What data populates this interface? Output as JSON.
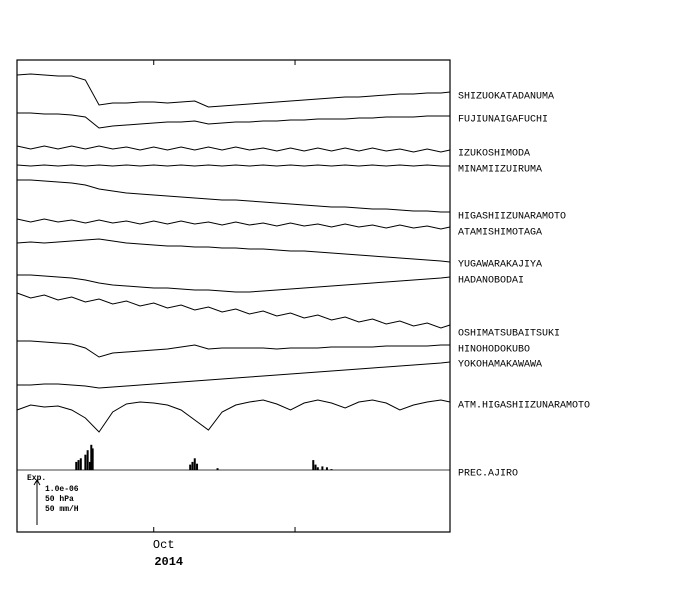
{
  "chart_data": {
    "type": "line",
    "xlim": [
      0,
      95
    ],
    "ylim": [
      0,
      472
    ],
    "xticks": [
      {
        "value": 30,
        "label": "Oct"
      },
      {
        "value": 61,
        "label": null
      }
    ],
    "x_sublabel": "2014",
    "x": [
      0,
      3,
      6,
      9,
      12,
      15,
      18,
      21,
      24,
      27,
      30,
      33,
      36,
      39,
      42,
      45,
      48,
      51,
      54,
      57,
      60,
      63,
      66,
      69,
      72,
      75,
      78,
      81,
      84,
      87,
      90,
      93,
      95
    ],
    "series": [
      {
        "name": "SHIZUOKATADANUMA",
        "color": "#000000",
        "values": [
          457,
          458,
          457,
          456,
          456,
          452,
          427,
          429,
          429,
          430,
          430,
          429,
          430,
          431,
          425,
          426,
          427,
          428,
          429,
          430,
          431,
          432,
          433,
          434,
          435,
          435,
          436,
          437,
          438,
          438,
          439,
          439,
          440
        ]
      },
      {
        "name": "FUJIUNAIGAFUCHI",
        "color": "#000000",
        "values": [
          419,
          419,
          418,
          418,
          417,
          415,
          404,
          406,
          407,
          408,
          409,
          410,
          410,
          411,
          408,
          409,
          410,
          410,
          411,
          411,
          412,
          412,
          413,
          413,
          413,
          414,
          414,
          415,
          415,
          415,
          416,
          416,
          416
        ]
      },
      {
        "name": "IZUKOSHIMODA",
        "color": "#000000",
        "values": [
          386,
          383,
          386,
          383,
          386,
          383,
          386,
          383,
          385,
          382,
          385,
          382,
          385,
          382,
          385,
          382,
          385,
          382,
          384,
          381,
          384,
          381,
          384,
          381,
          384,
          381,
          384,
          381,
          383,
          380,
          383,
          380,
          382
        ]
      },
      {
        "name": "MINAMIIZUIRUMA",
        "color": "#000000",
        "values": [
          367,
          366,
          367,
          366,
          367,
          366,
          367,
          366,
          367,
          366,
          367,
          366,
          367,
          366,
          367,
          366,
          367,
          366,
          367,
          366,
          367,
          366,
          367,
          366,
          367,
          366,
          367,
          366,
          367,
          366,
          367,
          366,
          366
        ]
      },
      {
        "name": "HIGASHIIZUNARAMOTO",
        "color": "#000000",
        "values": [
          352,
          352,
          351,
          350,
          349,
          347,
          343,
          341,
          339,
          338,
          337,
          336,
          335,
          334,
          333,
          332,
          332,
          331,
          330,
          329,
          328,
          327,
          326,
          325,
          325,
          324,
          323,
          323,
          322,
          321,
          321,
          320,
          320
        ]
      },
      {
        "name": "ATAMISHIMOTAGA",
        "color": "#000000",
        "values": [
          313,
          310,
          313,
          310,
          312,
          309,
          312,
          309,
          311,
          308,
          311,
          308,
          311,
          308,
          310,
          307,
          310,
          307,
          309,
          306,
          309,
          306,
          308,
          305,
          308,
          305,
          307,
          304,
          307,
          304,
          306,
          303,
          305
        ]
      },
      {
        "name": "YUGAWARAKAJIYA",
        "color": "#000000",
        "values": [
          289,
          290,
          289,
          290,
          291,
          292,
          293,
          291,
          289,
          288,
          287,
          286,
          286,
          285,
          285,
          284,
          284,
          283,
          283,
          282,
          281,
          281,
          280,
          279,
          278,
          277,
          276,
          275,
          274,
          273,
          272,
          271,
          270
        ]
      },
      {
        "name": "HADANOBODAI",
        "color": "#000000",
        "values": [
          257,
          257,
          256,
          255,
          254,
          252,
          249,
          247,
          246,
          245,
          244,
          244,
          243,
          242,
          242,
          241,
          240,
          240,
          241,
          242,
          243,
          244,
          245,
          246,
          247,
          248,
          249,
          250,
          251,
          252,
          253,
          254,
          255
        ]
      },
      {
        "name": "OSHIMATSUBAITSUKI",
        "color": "#000000",
        "values": [
          239,
          234,
          237,
          232,
          235,
          230,
          233,
          228,
          231,
          226,
          229,
          224,
          227,
          222,
          225,
          220,
          223,
          218,
          221,
          216,
          219,
          214,
          217,
          212,
          215,
          210,
          213,
          208,
          211,
          206,
          209,
          204,
          207
        ]
      },
      {
        "name": "HINOHODOKUBO",
        "color": "#000000",
        "values": [
          191,
          191,
          190,
          189,
          188,
          184,
          175,
          179,
          180,
          181,
          182,
          183,
          185,
          187,
          183,
          184,
          184,
          184,
          184,
          183,
          184,
          184,
          184,
          185,
          185,
          185,
          185,
          186,
          186,
          186,
          186,
          187,
          187
        ]
      },
      {
        "name": "YOKOHAMAKAWAWA",
        "color": "#000000",
        "values": [
          147,
          147,
          148,
          148,
          147,
          146,
          144,
          145,
          146,
          147,
          148,
          149,
          150,
          151,
          152,
          153,
          154,
          155,
          156,
          157,
          158,
          159,
          160,
          161,
          162,
          163,
          164,
          165,
          166,
          167,
          168,
          169,
          170
        ]
      },
      {
        "name": "ATM.HIGASHIIZUNARAMOTO",
        "color": "#000000",
        "values": [
          122,
          127,
          125,
          126,
          122,
          114,
          100,
          120,
          128,
          130,
          129,
          127,
          122,
          112,
          102,
          120,
          127,
          130,
          132,
          128,
          122,
          129,
          132,
          129,
          124,
          130,
          132,
          129,
          122,
          127,
          130,
          132,
          130
        ]
      }
    ],
    "precip": {
      "name": "PREC.AJIRO",
      "color": "#000000",
      "x": [
        13,
        13.5,
        14,
        15,
        15.5,
        16,
        16.3,
        16.6,
        38,
        38.5,
        39,
        39.5,
        44,
        65,
        65.5,
        66,
        67,
        68,
        69
      ],
      "values": [
        9,
        11,
        13,
        17,
        22,
        9,
        28,
        24,
        6,
        9,
        13,
        7,
        2,
        11,
        6,
        3,
        4,
        3,
        1
      ]
    },
    "scale": {
      "title": "Exp.",
      "strain": "1.0e-06",
      "pressure": "50 hPa",
      "precip": {
        "value": 50,
        "label": "50 mm/H"
      }
    }
  }
}
